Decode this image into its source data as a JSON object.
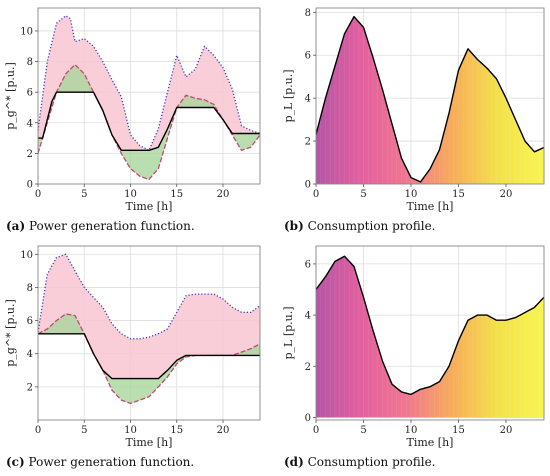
{
  "chart_data": [
    {
      "id": "a",
      "type": "area",
      "caption_tag": "(a)",
      "caption_text": "Power generation function.",
      "xlabel": "Time [h]",
      "ylabel": "p_g^* [p.u.]",
      "xlim": [
        0,
        24
      ],
      "ylim": [
        0,
        11.5
      ],
      "xticks": [
        0,
        5,
        10,
        15,
        20
      ],
      "yticks": [
        0,
        2,
        4,
        6,
        8,
        10
      ],
      "grid": true,
      "series": [
        {
          "role": "upper",
          "style": "dotted",
          "color": "#3a3ab8",
          "x": [
            0,
            1,
            2,
            3,
            3.5,
            4,
            5,
            6,
            7,
            8,
            9,
            10,
            11,
            12,
            13,
            14,
            15,
            16,
            17,
            18,
            19,
            20,
            21,
            22,
            23,
            24
          ],
          "y": [
            3.5,
            8.0,
            10.5,
            11.0,
            10.8,
            9.3,
            9.5,
            9.0,
            8.0,
            6.8,
            5.7,
            3.2,
            2.5,
            2.2,
            3.6,
            6.0,
            8.4,
            7.0,
            7.5,
            9.0,
            8.4,
            7.6,
            6.2,
            3.8,
            3.5,
            3.3
          ]
        },
        {
          "role": "lower",
          "style": "dashed",
          "color": "#c04a6e",
          "x": [
            0,
            1,
            2,
            3,
            4,
            5,
            6,
            7,
            8,
            9,
            10,
            11,
            12,
            13,
            14,
            15,
            16,
            17,
            18,
            19,
            20,
            21,
            22,
            23,
            24
          ],
          "y": [
            2.0,
            4.0,
            6.0,
            7.2,
            7.8,
            7.2,
            6.0,
            4.8,
            3.2,
            2.0,
            1.0,
            0.5,
            0.3,
            1.0,
            3.0,
            5.0,
            5.8,
            5.6,
            5.5,
            5.2,
            4.2,
            3.2,
            2.2,
            2.4,
            3.2
          ]
        },
        {
          "role": "generation",
          "style": "solid",
          "color": "#000000",
          "x": [
            0,
            0.5,
            1.5,
            2,
            3,
            4,
            5,
            6,
            7,
            8,
            9,
            10,
            11,
            12,
            13,
            14,
            15,
            16,
            17,
            18,
            19,
            20,
            21,
            22,
            23,
            24
          ],
          "y": [
            3.0,
            3.0,
            5.4,
            6.0,
            6.0,
            6.0,
            6.0,
            6.0,
            4.8,
            3.2,
            2.2,
            2.2,
            2.2,
            2.2,
            2.4,
            3.6,
            5.0,
            5.0,
            5.0,
            5.0,
            5.0,
            4.2,
            3.3,
            3.3,
            3.3,
            3.3
          ]
        }
      ]
    },
    {
      "id": "b",
      "type": "area",
      "caption_tag": "(b)",
      "caption_text": "Consumption profile.",
      "xlabel": "Time [h]",
      "ylabel": "p_L [p.u.]",
      "xlim": [
        0,
        24
      ],
      "ylim": [
        0,
        8.2
      ],
      "xticks": [
        0,
        5,
        10,
        15,
        20
      ],
      "yticks": [
        0,
        2,
        4,
        6,
        8
      ],
      "grid": true,
      "gradient": [
        "#b455a6",
        "#e3609e",
        "#f07790",
        "#f7ad59",
        "#f3e14a",
        "#f8f552"
      ],
      "series": [
        {
          "role": "consumption",
          "style": "solid",
          "color": "#000000",
          "x": [
            0,
            1,
            2,
            3,
            4,
            5,
            6,
            7,
            8,
            9,
            10,
            11,
            12,
            13,
            14,
            15,
            16,
            17,
            18,
            19,
            20,
            21,
            22,
            23,
            24
          ],
          "y": [
            2.3,
            4.0,
            5.5,
            7.0,
            7.8,
            7.3,
            5.9,
            4.4,
            2.8,
            1.2,
            0.3,
            0.1,
            0.7,
            1.6,
            3.3,
            5.3,
            6.3,
            5.8,
            5.4,
            4.9,
            4.0,
            3.0,
            2.0,
            1.5,
            1.7
          ]
        }
      ]
    },
    {
      "id": "c",
      "type": "area",
      "caption_tag": "(c)",
      "caption_text": "Power generation function.",
      "xlabel": "Time [h]",
      "ylabel": "p_g^* [p.u.]",
      "xlim": [
        0,
        24
      ],
      "ylim": [
        0,
        10.5
      ],
      "xticks": [
        0,
        5,
        10,
        15,
        20
      ],
      "yticks": [
        2,
        4,
        6,
        8,
        10
      ],
      "grid": true,
      "series": [
        {
          "role": "upper",
          "style": "dotted",
          "color": "#3a3ab8",
          "x": [
            0,
            1,
            2,
            3,
            4,
            5,
            6,
            7,
            8,
            9,
            10,
            11,
            12,
            13,
            14,
            15,
            16,
            17,
            18,
            19,
            20,
            21,
            22,
            23,
            24
          ],
          "y": [
            5.3,
            8.8,
            9.8,
            10.0,
            9.0,
            8.0,
            7.4,
            6.8,
            5.8,
            5.2,
            4.9,
            4.9,
            5.0,
            5.2,
            5.5,
            6.5,
            7.5,
            7.6,
            7.6,
            7.6,
            7.3,
            6.8,
            6.5,
            6.5,
            6.9
          ]
        },
        {
          "role": "lower",
          "style": "dashed",
          "color": "#c04a6e",
          "x": [
            0,
            1,
            2,
            3,
            4,
            5,
            6,
            7,
            8,
            9,
            10,
            11,
            12,
            13,
            14,
            15,
            16,
            17,
            18,
            19,
            20,
            21,
            22,
            23,
            24
          ],
          "y": [
            5.2,
            5.5,
            6.0,
            6.4,
            6.3,
            5.2,
            4.0,
            3.0,
            1.8,
            1.2,
            1.0,
            1.2,
            1.4,
            2.0,
            2.6,
            3.4,
            3.8,
            3.9,
            3.9,
            3.9,
            3.9,
            3.9,
            4.1,
            4.3,
            4.6
          ]
        },
        {
          "role": "generation",
          "style": "solid",
          "color": "#000000",
          "x": [
            0,
            1,
            2,
            3,
            4,
            5,
            6,
            7,
            8,
            9,
            10,
            11,
            12,
            13,
            14,
            15,
            16,
            17,
            18,
            19,
            20,
            21,
            22,
            23,
            24
          ],
          "y": [
            5.2,
            5.2,
            5.2,
            5.2,
            5.2,
            5.2,
            4.0,
            3.0,
            2.5,
            2.5,
            2.5,
            2.5,
            2.5,
            2.5,
            3.0,
            3.6,
            3.9,
            3.9,
            3.9,
            3.9,
            3.9,
            3.9,
            3.9,
            3.9,
            3.9
          ]
        }
      ]
    },
    {
      "id": "d",
      "type": "area",
      "caption_tag": "(d)",
      "caption_text": "Consumption profile.",
      "xlabel": "Time [h]",
      "ylabel": "p_L [p.u.]",
      "xlim": [
        0,
        24
      ],
      "ylim": [
        -0.1,
        6.7
      ],
      "xticks": [
        0,
        5,
        10,
        15,
        20
      ],
      "yticks": [
        0,
        2,
        4,
        6
      ],
      "grid": true,
      "gradient": [
        "#b455a6",
        "#e3609e",
        "#f07790",
        "#f7ad59",
        "#f3e14a",
        "#f8f552"
      ],
      "series": [
        {
          "role": "consumption",
          "style": "solid",
          "color": "#000000",
          "x": [
            0,
            1,
            2,
            3,
            4,
            5,
            6,
            7,
            8,
            9,
            10,
            11,
            12,
            13,
            14,
            15,
            16,
            17,
            18,
            19,
            20,
            21,
            22,
            23,
            24
          ],
          "y": [
            5.0,
            5.5,
            6.1,
            6.3,
            5.9,
            4.7,
            3.4,
            2.2,
            1.3,
            1.0,
            0.9,
            1.1,
            1.2,
            1.4,
            2.0,
            3.0,
            3.8,
            4.0,
            4.0,
            3.8,
            3.8,
            3.9,
            4.1,
            4.3,
            4.7
          ]
        }
      ]
    }
  ]
}
